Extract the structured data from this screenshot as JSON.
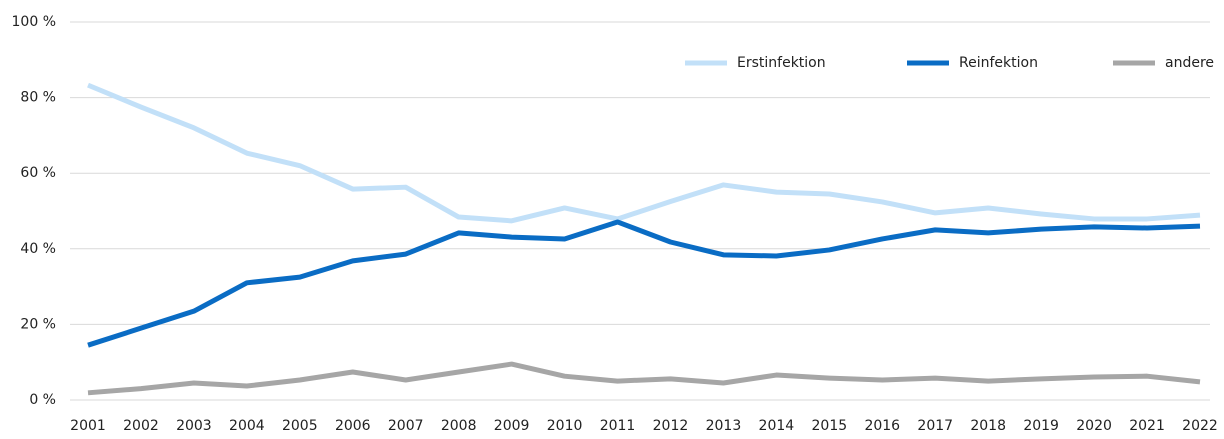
{
  "chart_data": {
    "type": "line",
    "categories": [
      "2001",
      "2002",
      "2003",
      "2004",
      "2005",
      "2006",
      "2007",
      "2008",
      "2009",
      "2010",
      "2011",
      "2012",
      "2013",
      "2014",
      "2015",
      "2016",
      "2017",
      "2018",
      "2019",
      "2020",
      "2021",
      "2022"
    ],
    "series": [
      {
        "name": "Erstinfektion",
        "color": "#c2e0f8",
        "values": [
          83.3,
          77.5,
          72,
          65.3,
          62,
          55.8,
          56.3,
          48.4,
          47.4,
          50.8,
          47.9,
          52.5,
          56.9,
          55,
          54.5,
          52.4,
          49.5,
          50.8,
          49.2,
          47.9,
          47.9,
          48.9
        ]
      },
      {
        "name": "Reinfektion",
        "color": "#0a6cc4",
        "values": [
          14.5,
          19,
          23.5,
          31,
          32.5,
          36.8,
          38.6,
          44.2,
          43.1,
          42.6,
          47.1,
          41.8,
          38.4,
          38.1,
          39.7,
          42.6,
          45,
          44.2,
          45.2,
          45.8,
          45.5,
          46
        ]
      },
      {
        "name": "andere",
        "color": "#a6a6a6",
        "values": [
          1.9,
          3,
          4.5,
          3.7,
          5.3,
          7.4,
          5.3,
          7.4,
          9.5,
          6.3,
          5,
          5.6,
          4.5,
          6.6,
          5.8,
          5.3,
          5.8,
          5,
          5.6,
          6.1,
          6.3,
          4.8
        ]
      }
    ],
    "ylim": [
      0,
      100
    ],
    "yticks": [
      {
        "value": 0,
        "label": "0 %"
      },
      {
        "value": 20,
        "label": "20 %"
      },
      {
        "value": 40,
        "label": "40 %"
      },
      {
        "value": 60,
        "label": "60 %"
      },
      {
        "value": 80,
        "label": "80 %"
      },
      {
        "value": 100,
        "label": "100 %"
      }
    ],
    "grid": true,
    "legend": "top-right"
  }
}
